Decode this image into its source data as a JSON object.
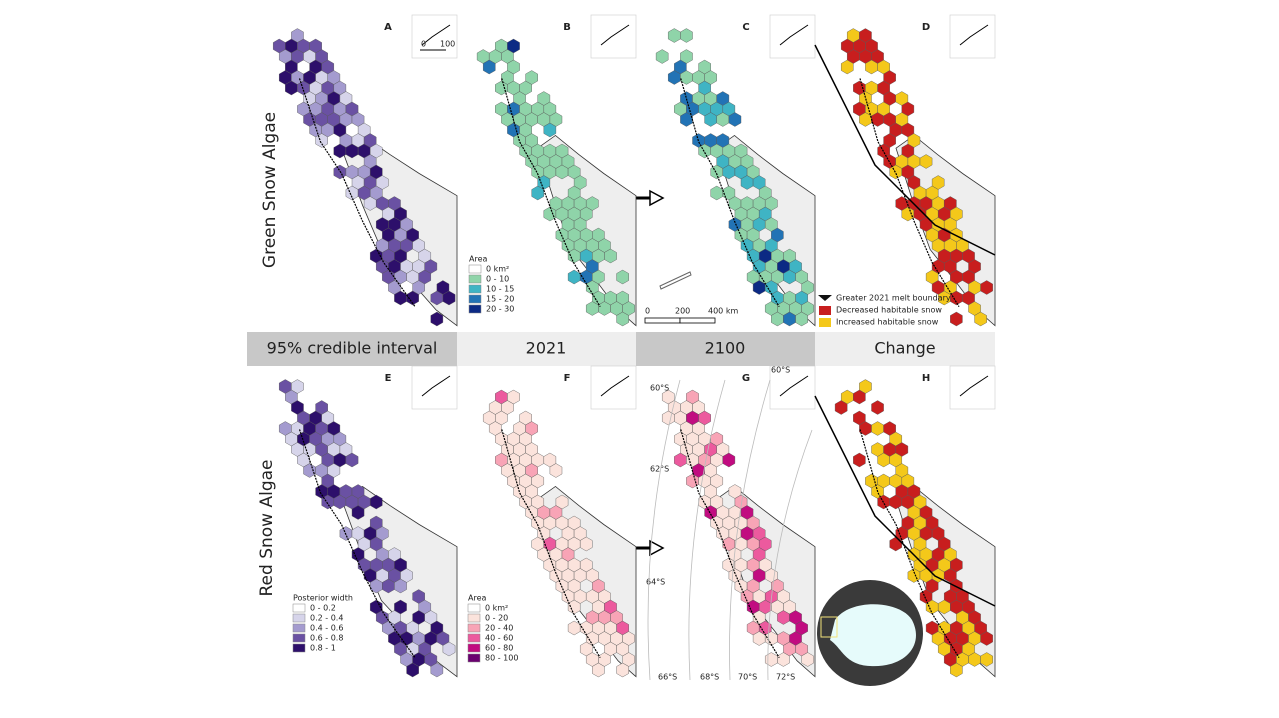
{
  "rows": [
    "Green Snow Algae",
    "Red Snow Algae"
  ],
  "columns": [
    "95% credible interval",
    "2021",
    "2100",
    "Change"
  ],
  "panels": [
    "A",
    "B",
    "C",
    "D",
    "E",
    "F",
    "G",
    "H"
  ],
  "inset_scale": [
    "0",
    "100"
  ],
  "scale_bar": [
    "0",
    "200",
    "400 km"
  ],
  "legend_green": {
    "title": "Area",
    "items": [
      {
        "label": "0 km²",
        "color": "#ffffff"
      },
      {
        "label": "0 - 10",
        "color": "#8fd4a9"
      },
      {
        "label": "10 - 15",
        "color": "#3fb4c4"
      },
      {
        "label": "15 - 20",
        "color": "#2273b5"
      },
      {
        "label": "20 - 30",
        "color": "#0c2a84"
      }
    ]
  },
  "legend_width": {
    "title": "Posterior width",
    "items": [
      {
        "label": "0 - 0.2",
        "color": "#ffffff"
      },
      {
        "label": "0.2 - 0.4",
        "color": "#d6d4ea"
      },
      {
        "label": "0.4 - 0.6",
        "color": "#a49bcf"
      },
      {
        "label": "0.6 - 0.8",
        "color": "#6a51a3"
      },
      {
        "label": "0.8 - 1",
        "color": "#2d0f6b"
      }
    ]
  },
  "legend_red": {
    "title": "Area",
    "items": [
      {
        "label": "0 km²",
        "color": "#ffffff"
      },
      {
        "label": "0 - 20",
        "color": "#fbe3dc"
      },
      {
        "label": "20 - 40",
        "color": "#f8a4b6"
      },
      {
        "label": "40 - 60",
        "color": "#ec5a9e"
      },
      {
        "label": "60 - 80",
        "color": "#c10c80"
      },
      {
        "label": "80 - 100",
        "color": "#6a0170"
      }
    ]
  },
  "legend_change": {
    "items": [
      {
        "label": "Greater 2021 melt boundary",
        "color": "#111111"
      },
      {
        "label": "Decreased habitable snow",
        "color": "#c81e1e"
      },
      {
        "label": "Increased habitable snow",
        "color": "#f4c81a"
      }
    ]
  },
  "latitudes": [
    "60°S",
    "62°S",
    "64°S",
    "66°S",
    "68°S",
    "70°S",
    "72°S",
    "60°S"
  ]
}
